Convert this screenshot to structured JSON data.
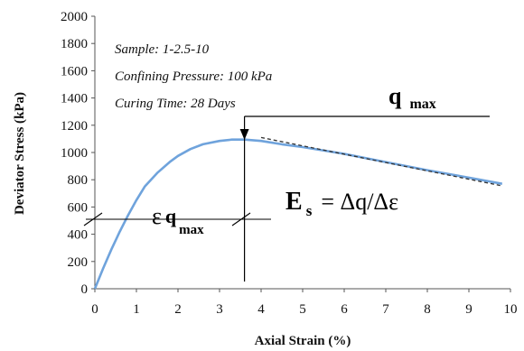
{
  "chart_data": {
    "type": "line",
    "xlabel": "Axial Strain (%)",
    "ylabel": "Deviator  Stress (kPa)",
    "xlim": [
      0,
      10
    ],
    "ylim": [
      0,
      2000
    ],
    "x_ticks": [
      "0",
      "1",
      "2",
      "3",
      "4",
      "5",
      "6",
      "7",
      "8",
      "9",
      "10"
    ],
    "y_ticks": [
      "0",
      "200",
      "400",
      "600",
      "800",
      "1000",
      "1200",
      "1400",
      "1600",
      "1800",
      "2000"
    ],
    "grid": false,
    "series": [
      {
        "color": "#6fa3dc",
        "x": [
          0,
          0.2,
          0.4,
          0.6,
          0.8,
          1.0,
          1.2,
          1.5,
          1.8,
          2.0,
          2.3,
          2.6,
          3.0,
          3.3,
          3.6,
          4.0,
          4.5,
          5.0,
          6.0,
          7.0,
          8.0,
          9.0,
          9.8
        ],
        "y": [
          0,
          150,
          290,
          420,
          540,
          650,
          750,
          850,
          930,
          975,
          1025,
          1060,
          1085,
          1095,
          1095,
          1085,
          1060,
          1040,
          990,
          930,
          870,
          815,
          770
        ]
      }
    ],
    "tangent_line": {
      "style": "dashed",
      "x": [
        4.0,
        9.8
      ],
      "y": [
        1110,
        755
      ]
    },
    "annotations": {
      "info_lines": [
        "Sample: 1-2.5-10",
        "Confining Pressure: 100 kPa",
        "Curing Time: 28 Days"
      ],
      "qmax_main": "q",
      "qmax_sub": "max",
      "qmax_x": 3.6,
      "eps_main": "ε",
      "eps_q": "q",
      "eps_sub": "max",
      "eps_level_y": 510,
      "es_main": "E",
      "es_sub": "s",
      "es_eq": "= Δq/Δε"
    }
  }
}
